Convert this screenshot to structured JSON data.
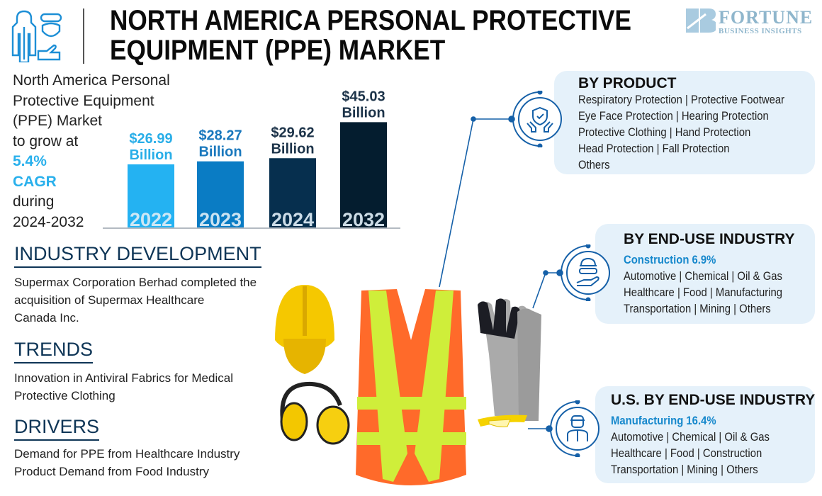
{
  "header": {
    "title_line1": "NORTH AMERICA PERSONAL PROTECTIVE",
    "title_line2": "EQUIPMENT (PPE) MARKET",
    "logo_main": "FORTUNE",
    "logo_sub": "BUSINESS INSIGHTS"
  },
  "intro": {
    "lines": [
      "North America Personal",
      "Protective Equipment",
      "(PPE) Market",
      "to grow at"
    ],
    "cagr_value": "5.4%",
    "cagr_label": "CAGR",
    "during": "during",
    "period": "2024-2032"
  },
  "chart_data": {
    "type": "bar",
    "categories": [
      "2022",
      "2023",
      "2024",
      "2032"
    ],
    "values": [
      26.99,
      28.27,
      29.62,
      45.03
    ],
    "labels": [
      {
        "value": "$26.99",
        "unit": "Billion"
      },
      {
        "value": "$28.27",
        "unit": "Billion"
      },
      {
        "value": "$29.62",
        "unit": "Billion"
      },
      {
        "value": "$45.03",
        "unit": "Billion"
      }
    ],
    "colors": [
      "#24b2f2",
      "#0a7cc4",
      "#062f4e",
      "#041d2f"
    ],
    "label_colors": [
      "#29aee8",
      "#1a78bd",
      "#1c3349",
      "#1c3349"
    ],
    "ylim": [
      0,
      50
    ],
    "grid": false
  },
  "sections": {
    "industry": {
      "heading": "INDUSTRY DEVELOPMENT",
      "lines": [
        "Supermax Corporation Berhad completed the",
        "acquisition of Supermax Healthcare",
        "Canada Inc."
      ]
    },
    "trends": {
      "heading": "TRENDS",
      "lines": [
        "Innovation in Antiviral Fabrics for Medical",
        "Protective Clothing"
      ]
    },
    "drivers": {
      "heading": "DRIVERS",
      "lines": [
        "Demand for PPE from Healthcare Industry",
        "Product Demand from Food Industry"
      ]
    }
  },
  "segments": {
    "product": {
      "heading": "BY PRODUCT",
      "icon": "shield-hands-icon",
      "lines": [
        "Respiratory Protection  |  Protective Footwear",
        "Eye Face Protection  |  Hearing Protection",
        "Protective Clothing  |  Hand Protection",
        "Head Protection  |  Fall Protection",
        "Others"
      ]
    },
    "end_use": {
      "heading": "BY END-USE INDUSTRY",
      "icon": "worker-helmet-icon",
      "highlight": "Construction 6.9%",
      "lines": [
        "Automotive  |  Chemical  |  Oil & Gas",
        "Healthcare  |  Food  |  Manufacturing",
        "Transportation  |  Mining  |  Others"
      ]
    },
    "us_end_use": {
      "heading": "U.S. BY END-USE INDUSTRY",
      "icon": "factory-worker-icon",
      "highlight": "Manufacturing 16.4%",
      "lines": [
        "Automotive  |  Chemical  |  Oil & Gas",
        "Healthcare  |  Food  |  Construction",
        "Transportation  |  Mining  |  Others"
      ]
    }
  }
}
